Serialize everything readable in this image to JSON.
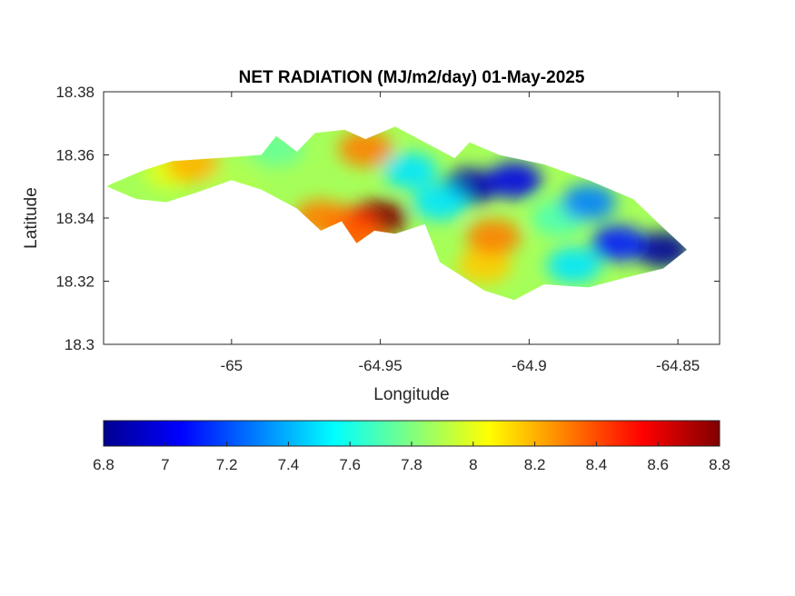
{
  "chart_data": {
    "type": "heatmap",
    "title": "NET RADIATION (MJ/m2/day) 01-May-2025",
    "xlabel": "Longitude",
    "ylabel": "Latitude",
    "xlim": [
      -65.043,
      -64.836
    ],
    "ylim": [
      18.3,
      18.38
    ],
    "x_ticks": [
      -65,
      -64.95,
      -64.9,
      -64.85
    ],
    "x_tick_labels": [
      "-65",
      "-64.95",
      "-64.9",
      "-64.85"
    ],
    "y_ticks": [
      18.3,
      18.32,
      18.34,
      18.36,
      18.38
    ],
    "y_tick_labels": [
      "18.3",
      "18.32",
      "18.34",
      "18.36",
      "18.38"
    ],
    "colorbar": {
      "colormap": "jet",
      "clim": [
        6.8,
        8.8
      ],
      "orientation": "horizontal",
      "location": "below",
      "ticks": [
        6.8,
        7,
        7.2,
        7.4,
        7.6,
        7.8,
        8,
        8.2,
        8.4,
        8.6,
        8.8
      ],
      "tick_labels": [
        "6.8",
        "7",
        "7.2",
        "7.4",
        "7.6",
        "7.8",
        "8",
        "8.2",
        "8.4",
        "8.6",
        "8.8"
      ]
    },
    "grid": false,
    "land_outline": [
      [
        -65.04,
        18.351
      ],
      [
        -65.03,
        18.355
      ],
      [
        -65.02,
        18.358
      ],
      [
        -65.005,
        18.359
      ],
      [
        -64.99,
        18.36
      ],
      [
        -64.985,
        18.366
      ],
      [
        -64.978,
        18.361
      ],
      [
        -64.972,
        18.367
      ],
      [
        -64.962,
        18.368
      ],
      [
        -64.955,
        18.365
      ],
      [
        -64.945,
        18.369
      ],
      [
        -64.935,
        18.364
      ],
      [
        -64.925,
        18.359
      ],
      [
        -64.92,
        18.364
      ],
      [
        -64.91,
        18.36
      ],
      [
        -64.895,
        18.357
      ],
      [
        -64.88,
        18.352
      ],
      [
        -64.865,
        18.346
      ],
      [
        -64.855,
        18.337
      ],
      [
        -64.847,
        18.33
      ],
      [
        -64.855,
        18.324
      ],
      [
        -64.868,
        18.321
      ],
      [
        -64.88,
        18.318
      ],
      [
        -64.895,
        18.319
      ],
      [
        -64.905,
        18.314
      ],
      [
        -64.915,
        18.317
      ],
      [
        -64.93,
        18.326
      ],
      [
        -64.935,
        18.338
      ],
      [
        -64.945,
        18.335
      ],
      [
        -64.952,
        18.336
      ],
      [
        -64.958,
        18.332
      ],
      [
        -64.963,
        18.339
      ],
      [
        -64.97,
        18.336
      ],
      [
        -64.978,
        18.343
      ],
      [
        -64.99,
        18.349
      ],
      [
        -65.0,
        18.352
      ],
      [
        -65.012,
        18.348
      ],
      [
        -65.022,
        18.345
      ],
      [
        -65.032,
        18.346
      ],
      [
        -65.042,
        18.35
      ]
    ],
    "field_samples": [
      {
        "lon": -64.95,
        "lat": 18.34,
        "value": 8.8
      },
      {
        "lon": -64.96,
        "lat": 18.338,
        "value": 8.5
      },
      {
        "lon": -64.97,
        "lat": 18.34,
        "value": 8.3
      },
      {
        "lon": -64.957,
        "lat": 18.333,
        "value": 8.35
      },
      {
        "lon": -64.92,
        "lat": 18.35,
        "value": 6.9
      },
      {
        "lon": -64.905,
        "lat": 18.352,
        "value": 7.0
      },
      {
        "lon": -64.855,
        "lat": 18.33,
        "value": 6.85
      },
      {
        "lon": -64.87,
        "lat": 18.332,
        "value": 7.1
      },
      {
        "lon": -64.915,
        "lat": 18.325,
        "value": 8.15
      },
      {
        "lon": -64.912,
        "lat": 18.334,
        "value": 8.3
      },
      {
        "lon": -65.02,
        "lat": 18.355,
        "value": 8.0
      },
      {
        "lon": -65.013,
        "lat": 18.357,
        "value": 8.2
      },
      {
        "lon": -65.0,
        "lat": 18.35,
        "value": 7.9
      },
      {
        "lon": -64.985,
        "lat": 18.362,
        "value": 7.75
      },
      {
        "lon": -64.955,
        "lat": 18.362,
        "value": 8.3
      },
      {
        "lon": -64.94,
        "lat": 18.355,
        "value": 7.5
      },
      {
        "lon": -64.93,
        "lat": 18.345,
        "value": 7.5
      },
      {
        "lon": -64.89,
        "lat": 18.34,
        "value": 7.7
      },
      {
        "lon": -64.885,
        "lat": 18.325,
        "value": 7.5
      },
      {
        "lon": -64.88,
        "lat": 18.345,
        "value": 7.3
      }
    ]
  }
}
